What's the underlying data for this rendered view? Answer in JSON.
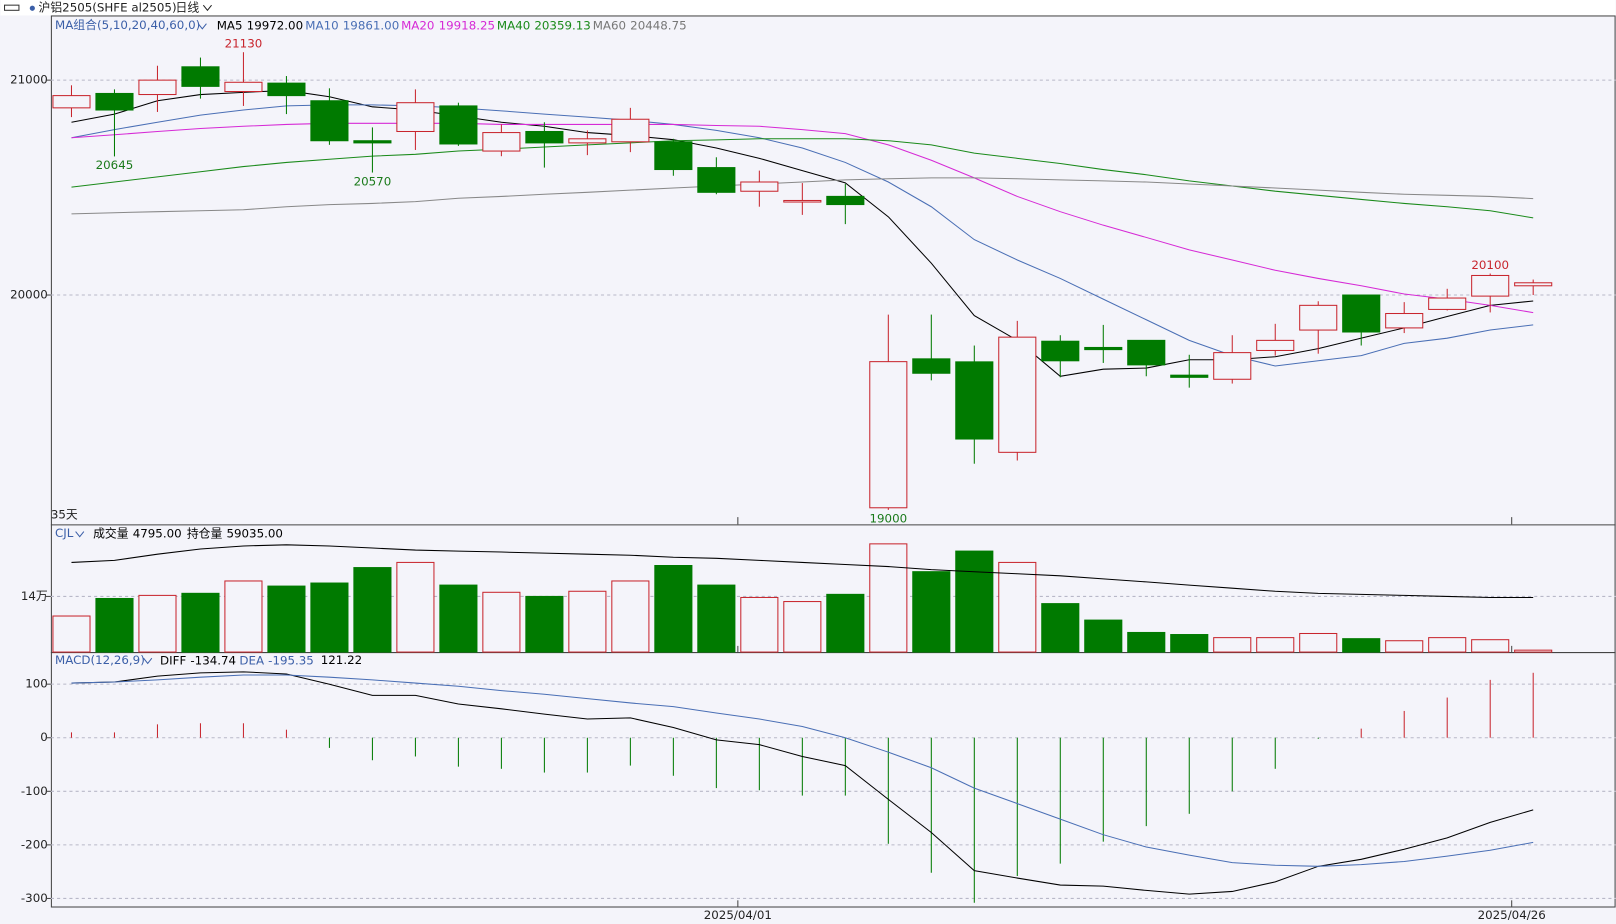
{
  "header": {
    "symbol": "沪铝2505(SHFE  al2505)",
    "period": "日线"
  },
  "chart_data": [
    {
      "type": "candlestick",
      "indicator_label": "MA组合(5,10,20,40,60,0)",
      "period_count": "35天",
      "categories": [
        null,
        null,
        null,
        null,
        null,
        null,
        null,
        null,
        null,
        null,
        null,
        null,
        null,
        null,
        null,
        null,
        "2025/04/01",
        null,
        null,
        null,
        null,
        null,
        null,
        null,
        null,
        null,
        null,
        null,
        null,
        null,
        null,
        null,
        null,
        null,
        "2025/04/26"
      ],
      "candles": {
        "open": [
          20871,
          20938,
          20933,
          21062,
          20947,
          20986,
          20904,
          20718,
          20761,
          20880,
          20670,
          20761,
          20708,
          20713,
          20713,
          20593,
          20483,
          20435,
          20459,
          19010,
          19703,
          19689,
          19268,
          19785,
          19756,
          19789,
          19627,
          19608,
          19742,
          19837,
          20000,
          19847,
          19933,
          19995,
          20043
        ],
        "high": [
          20976,
          20957,
          21067,
          21105,
          21130,
          21019,
          20962,
          20780,
          20957,
          20895,
          20794,
          20804,
          20766,
          20871,
          20727,
          20641,
          20579,
          20521,
          20517,
          19909,
          19909,
          19765,
          19880,
          19813,
          19861,
          19789,
          19722,
          19813,
          19866,
          19971,
          20000,
          19967,
          20029,
          20100,
          20072
        ],
        "low": [
          20828,
          20645,
          20852,
          20914,
          20880,
          20842,
          20699,
          20570,
          20675,
          20694,
          20646,
          20593,
          20651,
          20665,
          20555,
          20469,
          20411,
          20373,
          20330,
          19000,
          19603,
          19215,
          19230,
          19617,
          19684,
          19622,
          19569,
          19588,
          19718,
          19727,
          19765,
          19823,
          19928,
          19919,
          20000
        ],
        "close": [
          20928,
          20861,
          21000,
          20971,
          20990,
          20928,
          20718,
          20708,
          20895,
          20703,
          20756,
          20708,
          20727,
          20818,
          20584,
          20478,
          20526,
          20440,
          20421,
          19690,
          19636,
          19330,
          19804,
          19694,
          19746,
          19675,
          19617,
          19732,
          19789,
          19952,
          19828,
          19914,
          19986,
          20091,
          20057
        ],
        "high_labels": [
          null,
          null,
          null,
          null,
          "21130",
          null,
          null,
          null,
          null,
          null,
          null,
          null,
          null,
          null,
          null,
          null,
          null,
          null,
          null,
          null,
          null,
          null,
          null,
          null,
          null,
          null,
          null,
          null,
          null,
          null,
          null,
          null,
          null,
          "20100",
          null
        ],
        "low_labels": [
          null,
          "20645",
          null,
          null,
          null,
          null,
          null,
          "20570",
          null,
          null,
          null,
          null,
          null,
          null,
          null,
          null,
          null,
          null,
          null,
          "19000",
          null,
          null,
          null,
          null,
          null,
          null,
          null,
          null,
          null,
          null,
          null,
          null,
          null,
          null,
          null
        ],
        "up_color": "#c8252d",
        "down_color": "#007a00"
      },
      "series": [
        {
          "name": "MA5",
          "legend_value": "19972.00",
          "color": "#000000",
          "values": [
            20804,
            20842,
            20904,
            20933,
            20943,
            20952,
            20923,
            20876,
            20861,
            20833,
            20804,
            20785,
            20756,
            20742,
            20723,
            20684,
            20636,
            20579,
            20522,
            20364,
            20148,
            19904,
            19789,
            19622,
            19655,
            19660,
            19699,
            19699,
            19713,
            19751,
            19799,
            19847,
            19900,
            19952,
            19972
          ]
        },
        {
          "name": "MA10",
          "legend_value": "19861.00",
          "color": "#4a6fb5",
          "values": [
            20732,
            20770,
            20804,
            20837,
            20861,
            20880,
            20885,
            20885,
            20880,
            20871,
            20857,
            20842,
            20828,
            20813,
            20794,
            20766,
            20732,
            20684,
            20617,
            20526,
            20411,
            20258,
            20163,
            20077,
            19981,
            19885,
            19789,
            19718,
            19670,
            19694,
            19718,
            19775,
            19799,
            19837,
            19861
          ]
        },
        {
          "name": "MA20",
          "legend_value": "19918.25",
          "color": "#d62ad6",
          "values": [
            20732,
            20746,
            20761,
            20775,
            20785,
            20794,
            20799,
            20799,
            20799,
            20799,
            20794,
            20794,
            20794,
            20794,
            20794,
            20789,
            20785,
            20770,
            20751,
            20699,
            20627,
            20545,
            20459,
            20388,
            20325,
            20268,
            20210,
            20163,
            20115,
            20077,
            20043,
            20005,
            19981,
            19952,
            19918.25
          ]
        },
        {
          "name": "MA40",
          "legend_value": "20359.13",
          "color": "#1a8a1a",
          "values": [
            20502,
            20526,
            20550,
            20574,
            20598,
            20617,
            20632,
            20646,
            20655,
            20670,
            20679,
            20689,
            20699,
            20708,
            20718,
            20722,
            20727,
            20727,
            20727,
            20718,
            20699,
            20660,
            20636,
            20612,
            20584,
            20560,
            20531,
            20507,
            20483,
            20464,
            20445,
            20426,
            20411,
            20392,
            20359.13
          ]
        },
        {
          "name": "MA60",
          "legend_value": "20448.75",
          "color": "#888888",
          "values": [
            20378,
            20383,
            20388,
            20392,
            20397,
            20411,
            20421,
            20426,
            20435,
            20450,
            20459,
            20469,
            20478,
            20488,
            20498,
            20507,
            20517,
            20526,
            20536,
            20541,
            20545,
            20545,
            20541,
            20536,
            20531,
            20526,
            20517,
            20507,
            20498,
            20488,
            20478,
            20469,
            20464,
            20459,
            20448.75
          ]
        }
      ],
      "ylim": [
        18933,
        21301
      ],
      "yticks": [
        20000,
        21000
      ],
      "grid": true
    },
    {
      "type": "bar",
      "indicator_label": "CJL",
      "series": [
        {
          "name": "成交量",
          "legend_value": "4795.00",
          "up_color": "#c8252d",
          "down_color": "#007a00",
          "values": [
            90700,
            134800,
            142600,
            147800,
            178900,
            166000,
            173700,
            212600,
            225600,
            168500,
            150400,
            140000,
            153000,
            178900,
            217800,
            168500,
            137400,
            127100,
            145200,
            272300,
            202300,
            254100,
            225600,
            121900,
            80400,
            49300,
            44100,
            36300,
            36300,
            46700,
            33700,
            28500,
            36300,
            31100,
            4795
          ]
        },
        {
          "name": "持仓量",
          "legend_value": "59035.00",
          "axis": "y2",
          "color": "#000000",
          "values": [
            96900,
            99100,
            105800,
            111400,
            114700,
            115900,
            114700,
            112500,
            110300,
            109200,
            108100,
            106900,
            105800,
            104700,
            102500,
            101400,
            99100,
            96900,
            94700,
            92500,
            89100,
            86900,
            84700,
            82400,
            79100,
            75800,
            72400,
            69100,
            65700,
            63500,
            62400,
            61300,
            60200,
            59000,
            59035
          ]
        }
      ],
      "ylim": [
        0,
        318900
      ],
      "yticks": [
        {
          "value": 140000,
          "label": "14万"
        }
      ],
      "y2lim": [
        0,
        137000
      ],
      "grid": true
    },
    {
      "type": "macd",
      "indicator_label": "MACD(12,26,9)",
      "series": [
        {
          "name": "DIFF",
          "legend_value": "-134.74",
          "color": "#000000",
          "values": [
            102,
            104,
            115,
            121,
            123,
            119,
            100,
            79,
            79,
            63,
            54,
            44,
            35,
            37,
            19,
            -4,
            -13,
            -35,
            -52,
            -115,
            -177,
            -248,
            -262,
            -275,
            -277,
            -285,
            -292,
            -287,
            -269,
            -240,
            -227,
            -208,
            -187,
            -158,
            -134.74
          ]
        },
        {
          "name": "DEA",
          "legend_value": "-195.35",
          "color": "#4a6fb5",
          "values": [
            102,
            104,
            108,
            113,
            117,
            117,
            113,
            108,
            102,
            96,
            88,
            81,
            73,
            65,
            58,
            46,
            35,
            21,
            0,
            -27,
            -56,
            -94,
            -123,
            -152,
            -181,
            -204,
            -219,
            -233,
            -238,
            -240,
            -237,
            -231,
            -221,
            -210,
            -195.35
          ]
        }
      ],
      "histogram": {
        "legend_value": "121.22",
        "up_color": "#c8252d",
        "down_color": "#007a00",
        "values": [
          10,
          10,
          25,
          27,
          27,
          15,
          -19,
          -42,
          -35,
          -54,
          -58,
          -65,
          -65,
          -52,
          -71,
          -94,
          -98,
          -108,
          -108,
          -198,
          -252,
          -308,
          -258,
          -235,
          -194,
          -165,
          -142,
          -100,
          -58,
          -2,
          17,
          50,
          75,
          108,
          121.22
        ]
      },
      "ylim": [
        -315,
        158
      ],
      "yticks": [
        -300,
        -200,
        -100,
        0,
        100
      ],
      "grid": true
    }
  ]
}
